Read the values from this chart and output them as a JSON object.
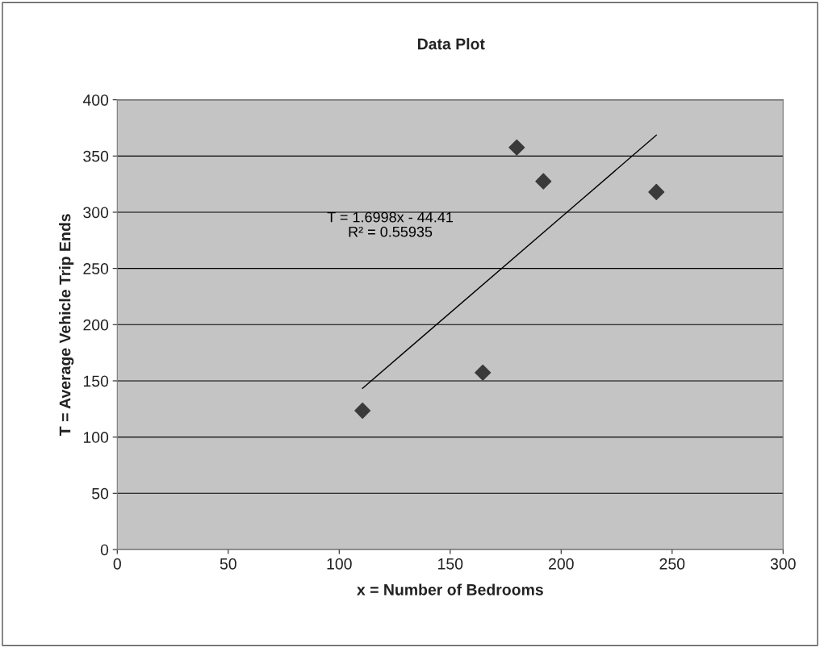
{
  "chart_data": {
    "type": "scatter",
    "title": "Data Plot",
    "xlabel": "x = Number of Bedrooms",
    "ylabel": "T = Average Vehicle Trip Ends",
    "annotations": [
      "T = 1.6998x - 44.41\nR² = 0.55935"
    ],
    "series": [
      {
        "color": "#3a3a3a",
        "marker": "diamond",
        "x": [
          110.5,
          164.7,
          180,
          192,
          242.9
        ],
        "values": [
          123.5,
          157.3,
          357.6,
          327.5,
          318
        ]
      },
      {
        "type": "line",
        "color": "#000000",
        "marker": "none",
        "x": [
          110.5,
          242.9
        ],
        "values": [
          143.4,
          368.5
        ]
      }
    ],
    "xlim": [
      0,
      300
    ],
    "xticks": [
      0,
      50,
      100,
      150,
      200,
      250,
      300
    ],
    "ylim": [
      0,
      400
    ],
    "yticks": [
      0,
      50,
      100,
      150,
      200,
      250,
      300,
      350,
      400
    ],
    "grid": "y",
    "legend": false
  }
}
